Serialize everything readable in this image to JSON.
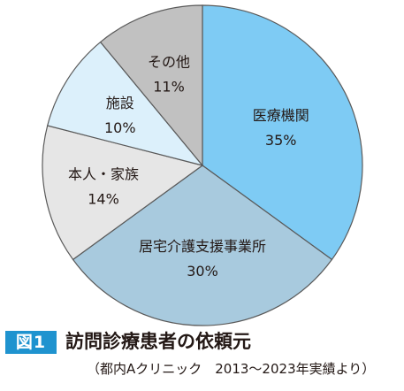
{
  "figure": {
    "badge": "図1",
    "title": "訪問診療患者の依頼元",
    "subtitle": "（都内Aクリニック　2013～2023年実績より）"
  },
  "chart_data": {
    "type": "pie",
    "unit": "%",
    "start": "12 o'clock",
    "direction": "clockwise",
    "slices": [
      {
        "label": "医療機関",
        "value": 35,
        "value_label": "35%",
        "color": "#7ecbf4"
      },
      {
        "label": "居宅介護支援事業所",
        "value": 30,
        "value_label": "30%",
        "color": "#a8cade"
      },
      {
        "label": "本人・家族",
        "value": 14,
        "value_label": "14%",
        "color": "#e6e6e6"
      },
      {
        "label": "施設",
        "value": 10,
        "value_label": "10%",
        "color": "#dcf0fb"
      },
      {
        "label": "その他",
        "value": 11,
        "value_label": "11%",
        "color": "#c1c1c1"
      }
    ],
    "edge_color": "#5a5a5a"
  }
}
